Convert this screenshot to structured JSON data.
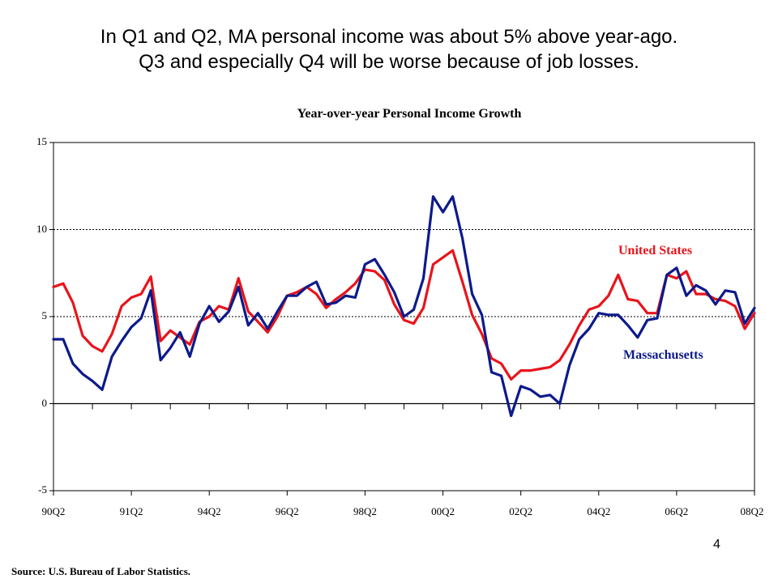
{
  "headline": {
    "line1": "In Q1 and Q2, MA personal income was about 5% above year-ago.",
    "line2": "Q3 and especially Q4 will be worse because of job losses."
  },
  "page_number": "4",
  "source": "Source: U.S. Bureau of Labor Statistics.",
  "colors": {
    "us": "#e8141b",
    "ma": "#0d1a8a",
    "grid": "#000000"
  },
  "chart_data": {
    "type": "line",
    "title": "Year-over-year Personal Income Growth",
    "xlabel": "",
    "ylabel": "",
    "ylim": [
      -5,
      15
    ],
    "yticks": [
      -5,
      0,
      5,
      10,
      15
    ],
    "gridlines_y": [
      5,
      10
    ],
    "grid_style": "dotted",
    "tick_labels_x": [
      "90Q2",
      "91Q2",
      "94Q2",
      "96Q2",
      "98Q2",
      "00Q2",
      "02Q2",
      "04Q2",
      "06Q2",
      "08Q2"
    ],
    "tick_label_index": [
      0,
      8,
      16,
      24,
      32,
      40,
      48,
      56,
      64,
      72
    ],
    "n_points": 73,
    "series": [
      {
        "name": "United States",
        "color": "#e8141b",
        "values": [
          6.7,
          6.9,
          5.8,
          3.9,
          3.3,
          3.0,
          4.0,
          5.6,
          6.1,
          6.3,
          7.3,
          3.6,
          4.2,
          3.8,
          3.4,
          4.7,
          5.0,
          5.6,
          5.4,
          7.2,
          5.3,
          4.7,
          4.1,
          5.0,
          6.2,
          6.4,
          6.7,
          6.3,
          5.5,
          6.0,
          6.4,
          6.9,
          7.7,
          7.6,
          7.1,
          5.7,
          4.8,
          4.6,
          5.5,
          8.0,
          8.4,
          8.8,
          7.0,
          5.1,
          4.0,
          2.6,
          2.3,
          1.4,
          1.9,
          1.9,
          2.0,
          2.1,
          2.5,
          3.4,
          4.5,
          5.4,
          5.6,
          6.2,
          7.4,
          6.0,
          5.9,
          5.2,
          5.2,
          7.4,
          7.2,
          7.6,
          6.3,
          6.3,
          6.0,
          5.9,
          5.6,
          4.3,
          5.2
        ]
      },
      {
        "name": "Massachusetts",
        "color": "#0d1a8a",
        "values": [
          3.7,
          3.7,
          2.3,
          1.7,
          1.3,
          0.8,
          2.7,
          3.6,
          4.4,
          4.9,
          6.5,
          2.5,
          3.2,
          4.1,
          2.7,
          4.6,
          5.6,
          4.7,
          5.3,
          6.7,
          4.5,
          5.2,
          4.3,
          5.3,
          6.2,
          6.2,
          6.7,
          7.0,
          5.7,
          5.8,
          6.2,
          6.1,
          8.0,
          8.3,
          7.4,
          6.4,
          5.0,
          5.4,
          7.2,
          11.9,
          11.0,
          11.9,
          9.5,
          6.3,
          5.1,
          1.8,
          1.6,
          -0.7,
          1.0,
          0.8,
          0.4,
          0.5,
          0.0,
          2.2,
          3.7,
          4.3,
          5.2,
          5.1,
          5.1,
          4.5,
          3.8,
          4.8,
          4.9,
          7.4,
          7.8,
          6.2,
          6.8,
          6.5,
          5.7,
          6.5,
          6.4,
          4.6,
          5.5
        ]
      }
    ]
  }
}
